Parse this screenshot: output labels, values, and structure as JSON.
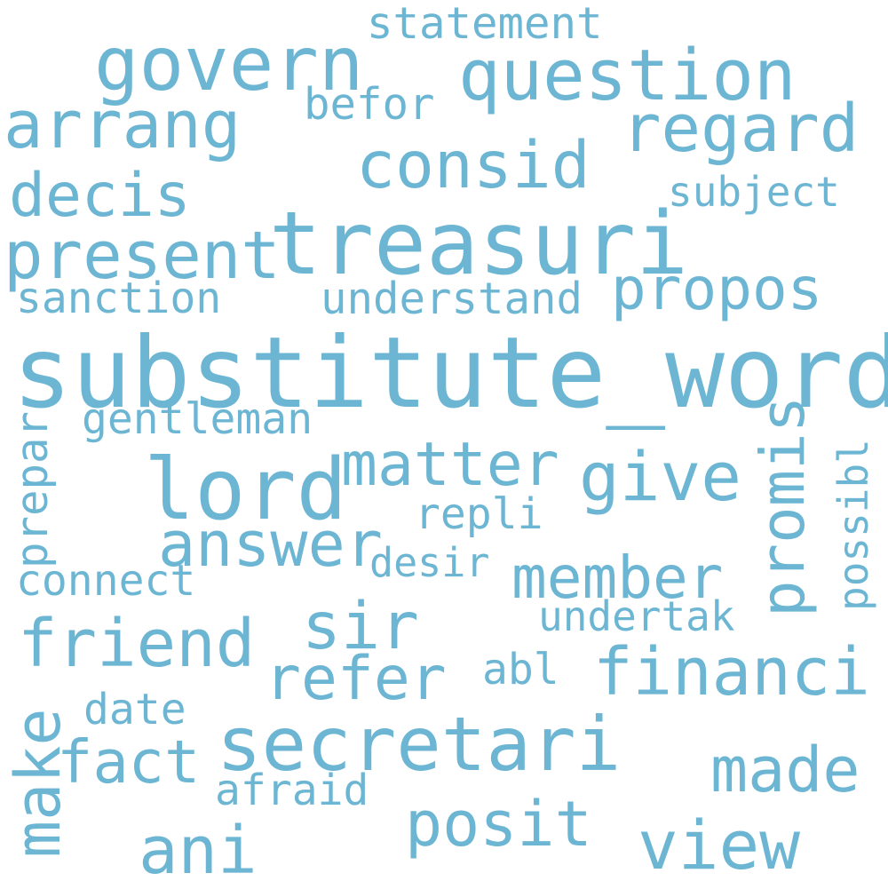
{
  "palette": {
    "background": "#ffffff",
    "word_color": "#6db6d3"
  },
  "words": {
    "substitute_word": "substitute_word",
    "treasuri": "treasuri",
    "lord": "lord",
    "secretari": "secretari",
    "question": "question",
    "govern": "govern",
    "arrang": "arrang",
    "consid": "consid",
    "regard": "regard",
    "present": "present",
    "decis": "decis",
    "propos": "propos",
    "answer": "answer",
    "matter": "matter",
    "give": "give",
    "promis": "promis",
    "member": "member",
    "friend": "friend",
    "sir": "sir",
    "refer": "refer",
    "financi": "financi",
    "make": "make",
    "fact": "fact",
    "made": "made",
    "ani": "ani",
    "posit": "posit",
    "view": "view",
    "statement": "statement",
    "befor": "befor",
    "subject": "subject",
    "understand": "understand",
    "sanction": "sanction",
    "gentleman": "gentleman",
    "prepar": "prepar",
    "possibl": "possibl",
    "repli": "repli",
    "desir": "desir",
    "connect": "connect",
    "undertak": "undertak",
    "abl": "abl",
    "date": "date",
    "afraid": "afraid"
  }
}
